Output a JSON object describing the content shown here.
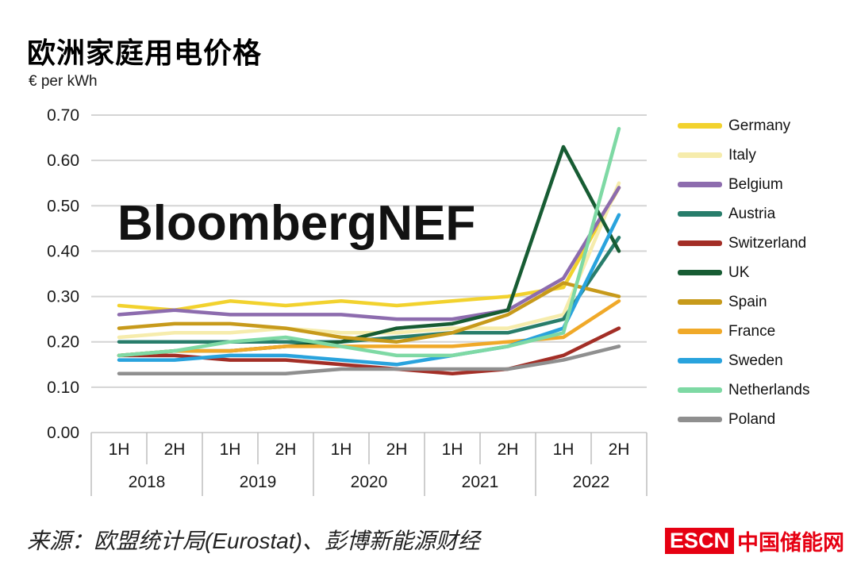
{
  "title": "欧洲家庭用电价格",
  "unit_label": "€ per kWh",
  "watermark": "BloombergNEF",
  "source": "来源：欧盟统计局(Eurostat)、彭博新能源财经",
  "logo": {
    "badge": "ESCN",
    "name": "中国储能网",
    "color": "#e60012"
  },
  "chart_data": {
    "type": "line",
    "title": "欧洲家庭用电价格",
    "ylabel": "€ per kWh",
    "ylim": [
      0,
      0.7
    ],
    "yticks": [
      0.0,
      0.1,
      0.2,
      0.3,
      0.4,
      0.5,
      0.6,
      0.7
    ],
    "grid": true,
    "legend_position": "right",
    "categories_half": [
      "1H",
      "2H",
      "1H",
      "2H",
      "1H",
      "2H",
      "1H",
      "2H",
      "1H",
      "2H"
    ],
    "years": [
      "2018",
      "2019",
      "2020",
      "2021",
      "2022"
    ],
    "series": [
      {
        "name": "Germany",
        "color": "#f2d22e",
        "values": [
          0.28,
          0.27,
          0.29,
          0.28,
          0.29,
          0.28,
          0.29,
          0.3,
          0.32,
          0.54
        ]
      },
      {
        "name": "Italy",
        "color": "#f6ecac",
        "values": [
          0.21,
          0.22,
          0.22,
          0.23,
          0.22,
          0.22,
          0.23,
          0.23,
          0.26,
          0.55
        ]
      },
      {
        "name": "Belgium",
        "color": "#8d6cae",
        "values": [
          0.26,
          0.27,
          0.26,
          0.26,
          0.26,
          0.25,
          0.25,
          0.27,
          0.34,
          0.54
        ]
      },
      {
        "name": "Austria",
        "color": "#287d6b",
        "values": [
          0.2,
          0.2,
          0.2,
          0.2,
          0.2,
          0.21,
          0.22,
          0.22,
          0.25,
          0.43
        ]
      },
      {
        "name": "Switzerland",
        "color": "#a32e26",
        "values": [
          0.17,
          0.17,
          0.16,
          0.16,
          0.15,
          0.14,
          0.13,
          0.14,
          0.17,
          0.23
        ]
      },
      {
        "name": "UK",
        "color": "#175c33",
        "values": [
          0.17,
          0.18,
          0.18,
          0.19,
          0.2,
          0.23,
          0.24,
          0.27,
          0.63,
          0.4
        ]
      },
      {
        "name": "Spain",
        "color": "#c79a1b",
        "values": [
          0.23,
          0.24,
          0.24,
          0.23,
          0.21,
          0.2,
          0.22,
          0.26,
          0.33,
          0.3
        ]
      },
      {
        "name": "France",
        "color": "#f0a929",
        "values": [
          0.17,
          0.18,
          0.18,
          0.19,
          0.19,
          0.19,
          0.19,
          0.2,
          0.21,
          0.29
        ]
      },
      {
        "name": "Sweden",
        "color": "#29a3dd",
        "values": [
          0.16,
          0.16,
          0.17,
          0.17,
          0.16,
          0.15,
          0.17,
          0.19,
          0.23,
          0.48
        ]
      },
      {
        "name": "Netherlands",
        "color": "#7ed9a4",
        "values": [
          0.17,
          0.18,
          0.2,
          0.21,
          0.19,
          0.17,
          0.17,
          0.19,
          0.22,
          0.67
        ]
      },
      {
        "name": "Poland",
        "color": "#8f8f8f",
        "values": [
          0.13,
          0.13,
          0.13,
          0.13,
          0.14,
          0.14,
          0.14,
          0.14,
          0.16,
          0.19
        ]
      }
    ]
  }
}
